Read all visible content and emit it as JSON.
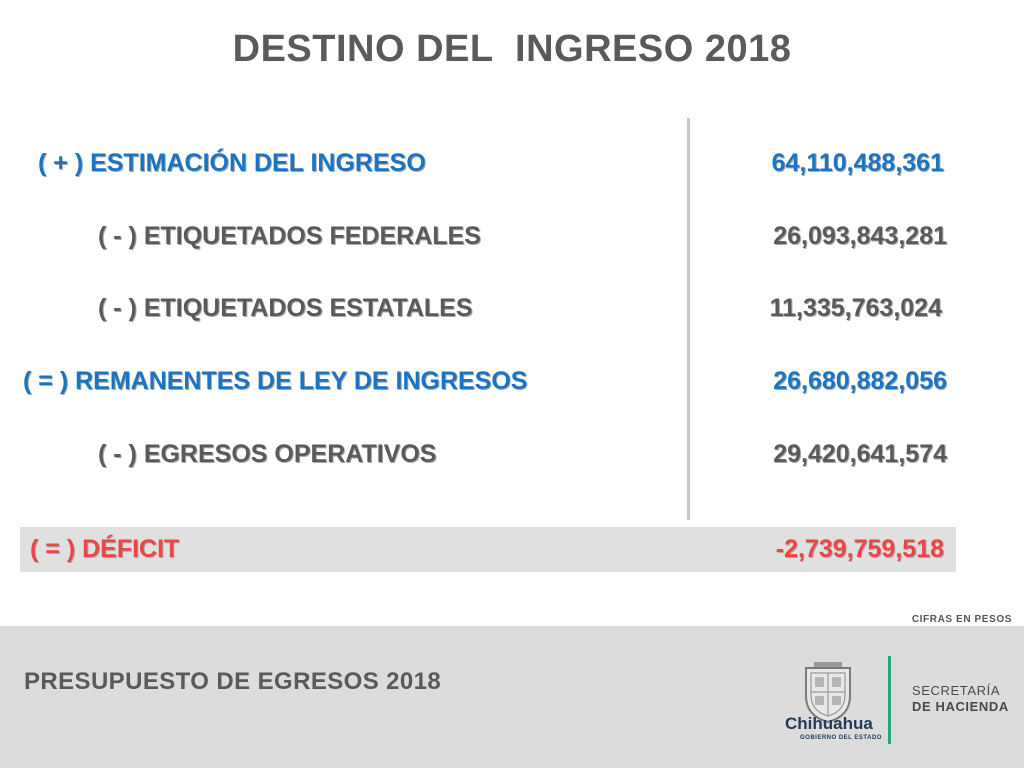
{
  "title": "DESTINO DEL  INGRESO 2018",
  "rows": [
    {
      "label": "( + ) ESTIMACIÓN DEL INGRESO",
      "value": "64,110,488,361"
    },
    {
      "label": "( - ) ETIQUETADOS FEDERALES",
      "value": "26,093,843,281"
    },
    {
      "label": "( - ) ETIQUETADOS ESTATALES",
      "value": "11,335,763,024"
    },
    {
      "label": "( = ) REMANENTES DE LEY DE INGRESOS",
      "value": "26,680,882,056"
    },
    {
      "label": "( - ) EGRESOS OPERATIVOS",
      "value": "29,420,641,574"
    }
  ],
  "deficit": {
    "label": "( = ) DÉFICIT",
    "value": "-2,739,759,518"
  },
  "units_note": "CIFRAS EN PESOS",
  "footer": {
    "title": "PRESUPUESTO DE EGRESOS 2018",
    "brand_name": "Chihuahua",
    "brand_subtitle": "GOBIERNO DEL ESTADO",
    "secretaria_line1": "SECRETARÍA",
    "secretaria_line2": "DE HACIENDA"
  },
  "colors": {
    "blue": "#1a74c4",
    "gray_text": "#5a5a5a",
    "red": "#ef4444",
    "green_accent": "#2aa37f",
    "footer_bg": "#dcdcdc"
  }
}
